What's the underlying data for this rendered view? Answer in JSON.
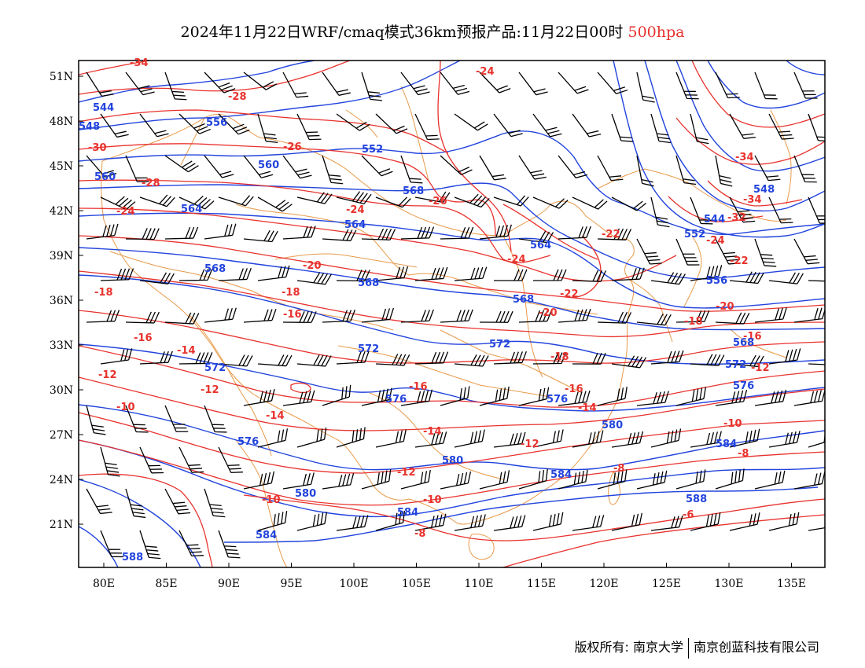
{
  "title": {
    "main": "2024年11月22日WRF/cmaq模式36km预报产品:11月22日00时",
    "level": "500hpa"
  },
  "axes": {
    "lat_ticks": [
      "51N",
      "48N",
      "45N",
      "42N",
      "39N",
      "36N",
      "33N",
      "30N",
      "27N",
      "24N",
      "21N"
    ],
    "lon_ticks": [
      "80E",
      "85E",
      "90E",
      "95E",
      "100E",
      "105E",
      "110E",
      "115E",
      "120E",
      "125E",
      "130E",
      "135E"
    ]
  },
  "colors": {
    "temperature": "#e8322d",
    "height": "#2244dd",
    "border": "#e89a4a",
    "barb": "#000000"
  },
  "temperature_labels": [
    "-34",
    "-32",
    "-30",
    "-28",
    "-26",
    "-24",
    "-22",
    "-20",
    "-18",
    "-16",
    "-14",
    "-12",
    "-10",
    "-8",
    "-6"
  ],
  "height_labels": [
    "544",
    "548",
    "552",
    "556",
    "560",
    "564",
    "568",
    "572",
    "576",
    "580",
    "584",
    "588"
  ],
  "footer": {
    "left": "版权所有: 南京大学",
    "right": "南京创蓝科技有限公司"
  }
}
